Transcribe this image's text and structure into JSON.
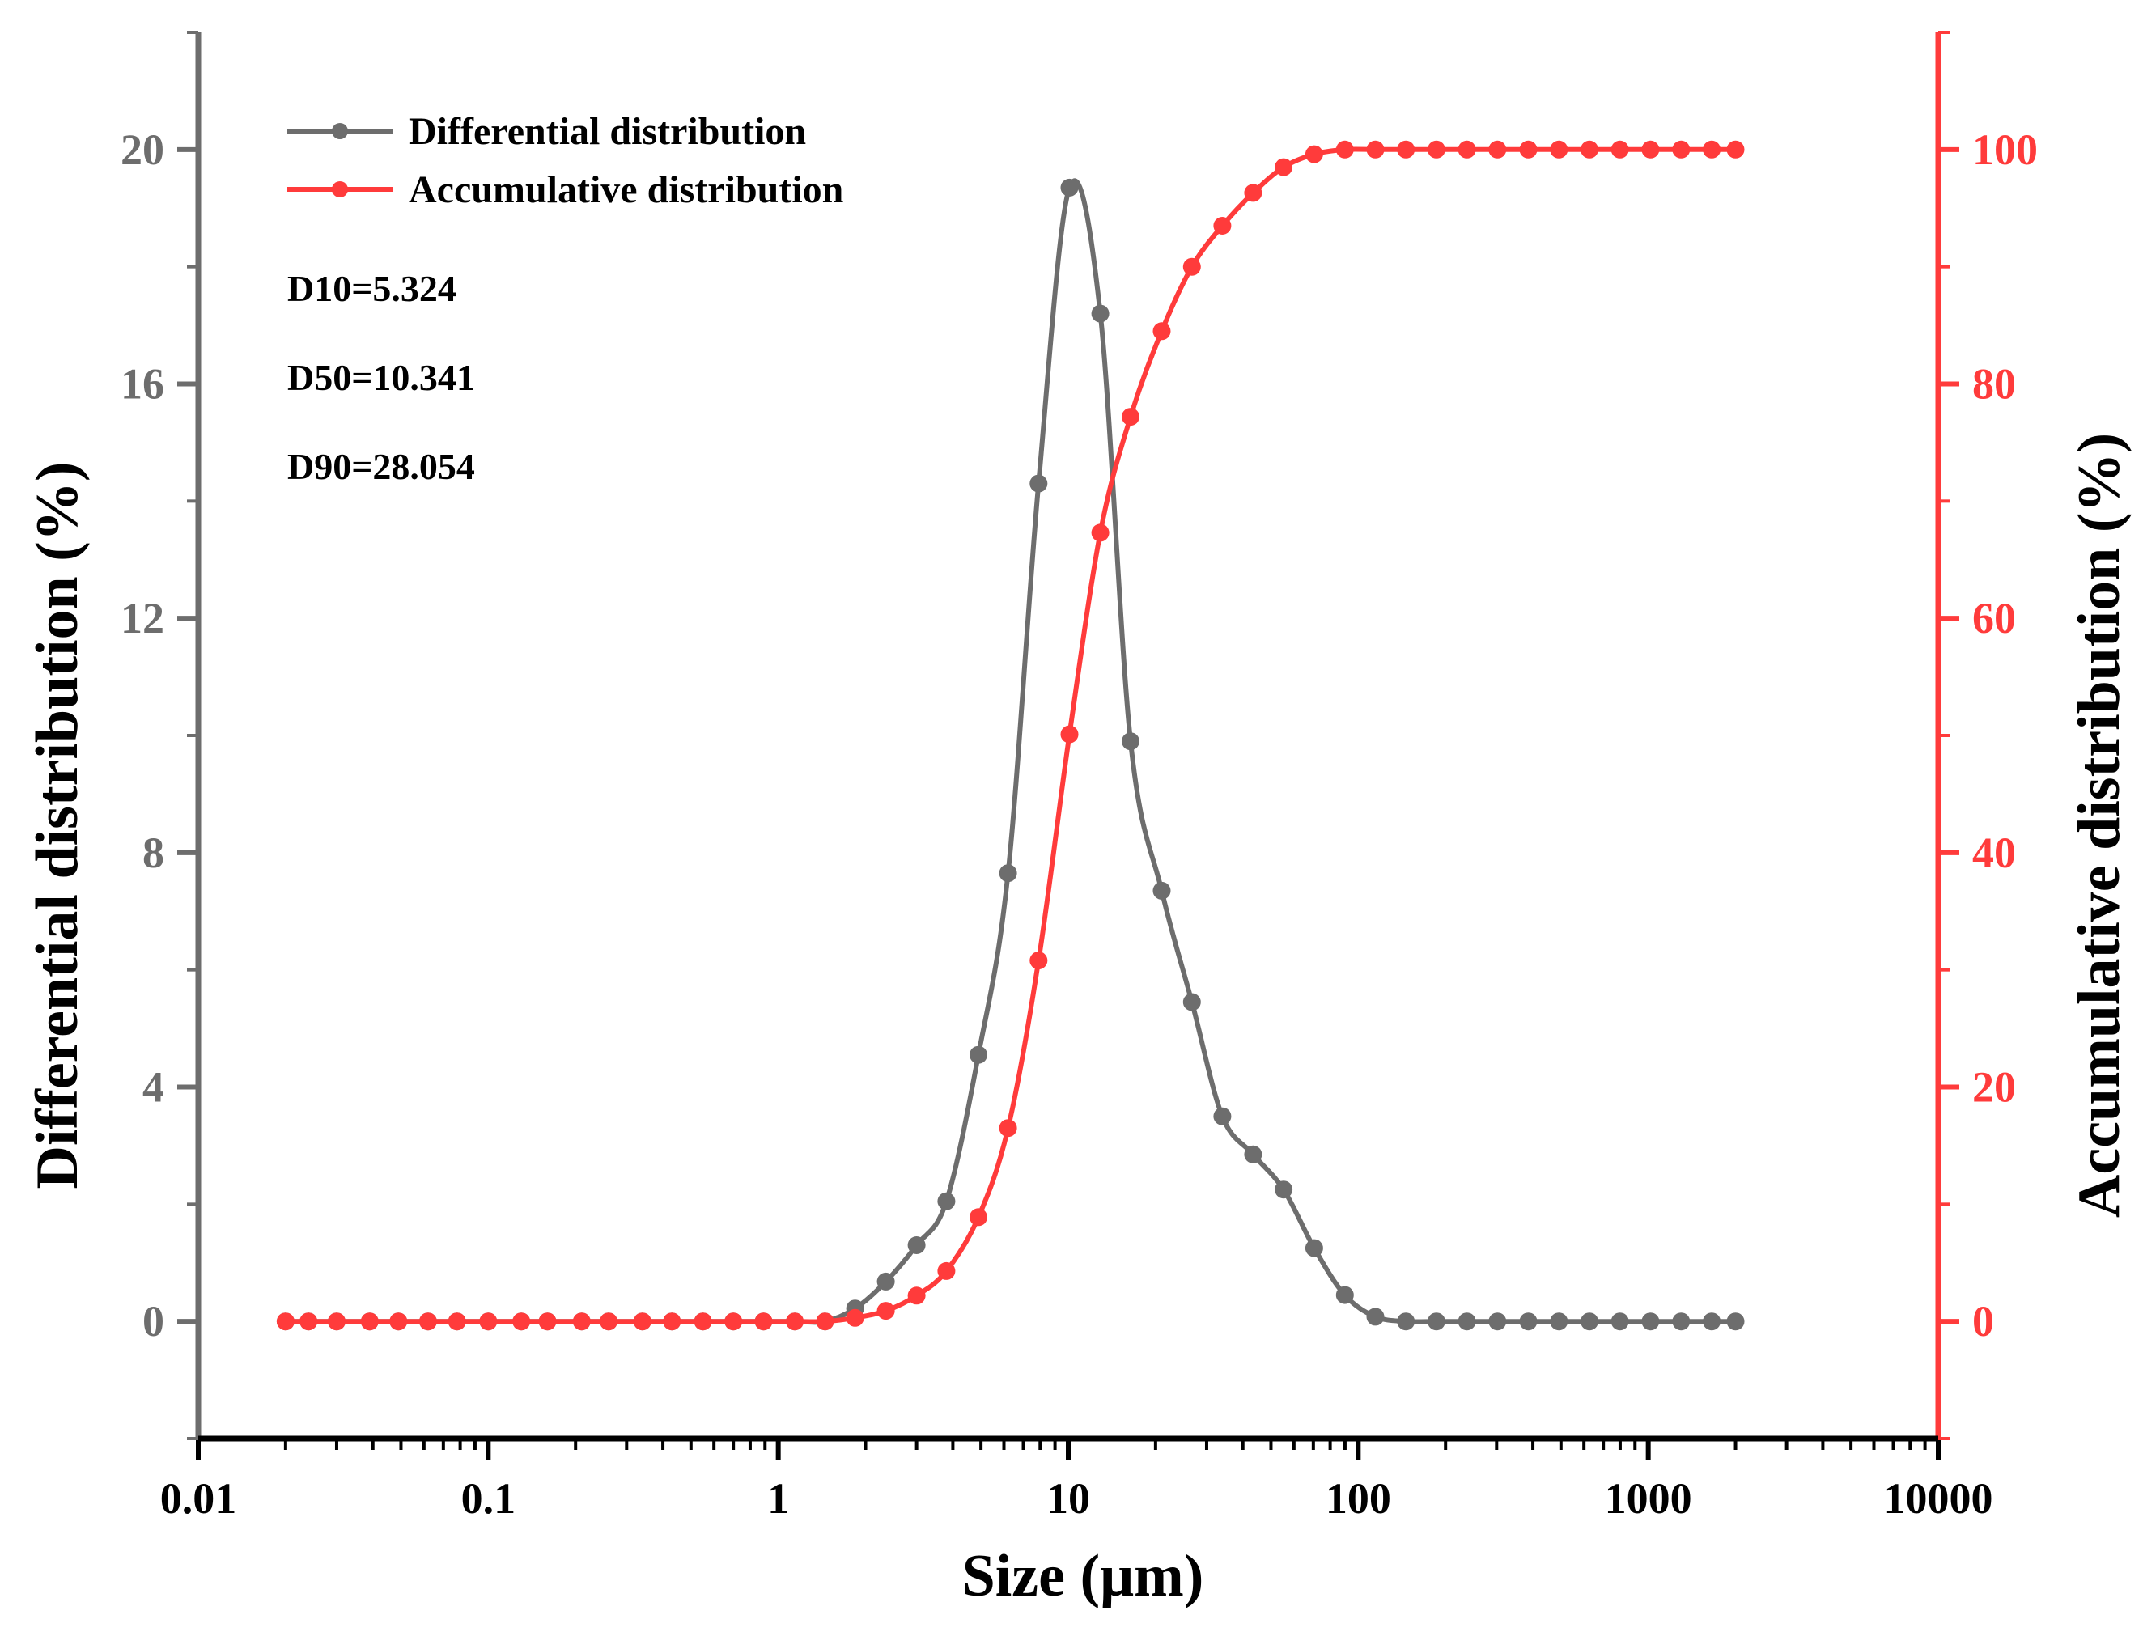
{
  "chart_data": {
    "type": "line",
    "title": "",
    "xlabel": "Size (μm)",
    "ylabel_left": "Differential distribution (%)",
    "ylabel_right": "Accumulative distribution (%)",
    "x_scale": "log",
    "xlim": [
      0.01,
      10000
    ],
    "ylim_left": [
      -2,
      22
    ],
    "ylim_right": [
      -10,
      110
    ],
    "x_ticks": [
      0.01,
      0.1,
      1,
      10,
      100,
      1000,
      10000
    ],
    "x_tick_labels": [
      "0.01",
      "0.1",
      "1",
      "10",
      "100",
      "1000",
      "10000"
    ],
    "y_left_ticks": [
      0,
      4,
      8,
      12,
      16,
      20
    ],
    "y_left_tick_labels": [
      "0",
      "4",
      "8",
      "12",
      "16",
      "20"
    ],
    "y_right_ticks": [
      0,
      20,
      40,
      60,
      80,
      100
    ],
    "y_right_tick_labels": [
      "0",
      "20",
      "40",
      "60",
      "80",
      "100"
    ],
    "colors": {
      "differential": "#6d6d6d",
      "accumulative": "#ff3b3b",
      "left_axis": "#6d6d6d",
      "right_axis": "#ff3b3b",
      "bottom_axis": "#000000"
    },
    "legend": {
      "position": "top-left",
      "entries": [
        "Differential distribution",
        "Accumulative distribution"
      ]
    },
    "annotations": [
      "D10=5.324",
      "D50=10.341",
      "D90=28.054"
    ],
    "series": [
      {
        "name": "Differential distribution",
        "axis": "left",
        "x": [
          0.02,
          0.024,
          0.03,
          0.039,
          0.049,
          0.062,
          0.078,
          0.1,
          0.13,
          0.16,
          0.21,
          0.26,
          0.34,
          0.43,
          0.55,
          0.7,
          0.89,
          1.14,
          1.45,
          1.84,
          2.35,
          3.0,
          3.8,
          4.9,
          6.2,
          7.9,
          10.1,
          12.9,
          16.4,
          21.0,
          26.7,
          34.0,
          43.4,
          55.3,
          70.5,
          89.9,
          114.6,
          146,
          186,
          237,
          302,
          386,
          492,
          627,
          799,
          1018,
          1298,
          1655,
          2000
        ],
        "y": [
          0,
          0,
          0,
          0,
          0,
          0,
          0,
          0,
          0,
          0,
          0,
          0,
          0,
          0,
          0,
          0,
          0,
          0,
          0,
          0.22,
          0.68,
          1.3,
          2.05,
          4.55,
          7.65,
          14.3,
          19.35,
          17.2,
          9.9,
          7.35,
          5.45,
          3.5,
          2.85,
          2.25,
          1.25,
          0.45,
          0.08,
          0,
          0,
          0,
          0,
          0,
          0,
          0,
          0,
          0,
          0,
          0,
          0
        ]
      },
      {
        "name": "Accumulative distribution",
        "axis": "right",
        "x": [
          0.02,
          0.024,
          0.03,
          0.039,
          0.049,
          0.062,
          0.078,
          0.1,
          0.13,
          0.16,
          0.21,
          0.26,
          0.34,
          0.43,
          0.55,
          0.7,
          0.89,
          1.14,
          1.45,
          1.84,
          2.35,
          3.0,
          3.8,
          4.9,
          6.2,
          7.9,
          10.1,
          12.9,
          16.4,
          21.0,
          26.7,
          34.0,
          43.4,
          55.3,
          70.5,
          89.9,
          114.6,
          146,
          186,
          237,
          302,
          386,
          492,
          627,
          799,
          1018,
          1298,
          1655,
          2000
        ],
        "y": [
          0,
          0,
          0,
          0,
          0,
          0,
          0,
          0,
          0,
          0,
          0,
          0,
          0,
          0,
          0,
          0,
          0,
          0,
          0,
          0.3,
          0.9,
          2.2,
          4.3,
          8.9,
          16.5,
          30.8,
          50.1,
          67.3,
          77.2,
          84.5,
          90.0,
          93.5,
          96.3,
          98.5,
          99.6,
          100,
          100,
          100,
          100,
          100,
          100,
          100,
          100,
          100,
          100,
          100,
          100,
          100,
          100
        ]
      }
    ]
  }
}
